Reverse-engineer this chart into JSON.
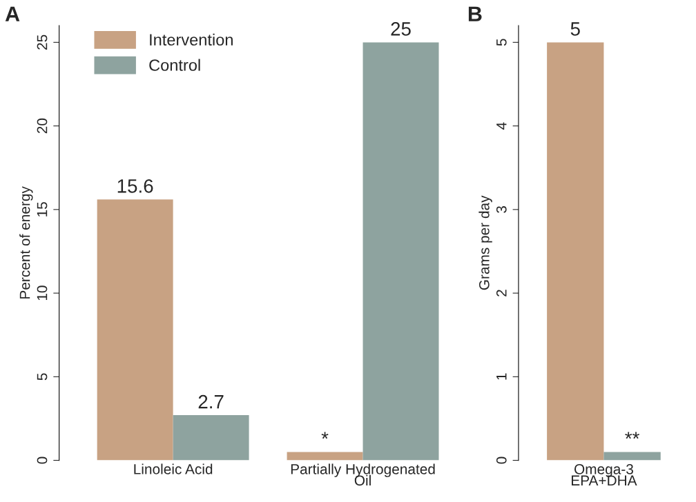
{
  "chart_data": [
    {
      "type": "bar",
      "title": "A",
      "ylabel": "Percent of energy",
      "categories": [
        "Linoleic Acid",
        "Partially Hydrogenated\nOil"
      ],
      "series": [
        {
          "name": "Intervention",
          "color": "#c8a283",
          "values": [
            15.6,
            0.5
          ],
          "value_labels": [
            "15.6",
            "*"
          ]
        },
        {
          "name": "Control",
          "color": "#8ea39f",
          "values": [
            2.7,
            25
          ],
          "value_labels": [
            "2.7",
            "25"
          ]
        }
      ],
      "ylim": [
        0,
        26
      ],
      "yticks": [
        0,
        5,
        10,
        15,
        20,
        25
      ],
      "grid": false,
      "legend": "top left"
    },
    {
      "type": "bar",
      "title": "B",
      "ylabel": "Grams per day",
      "categories": [
        "Omega-3\nEPA+DHA"
      ],
      "series": [
        {
          "color": "#c8a283",
          "values": [
            5
          ],
          "value_labels": [
            "5"
          ]
        },
        {
          "color": "#8ea39f",
          "values": [
            0.1
          ],
          "value_labels": [
            "**"
          ]
        }
      ],
      "ylim": [
        0,
        5.2
      ],
      "yticks": [
        0,
        1,
        2,
        3,
        4,
        5
      ],
      "grid": false
    }
  ]
}
